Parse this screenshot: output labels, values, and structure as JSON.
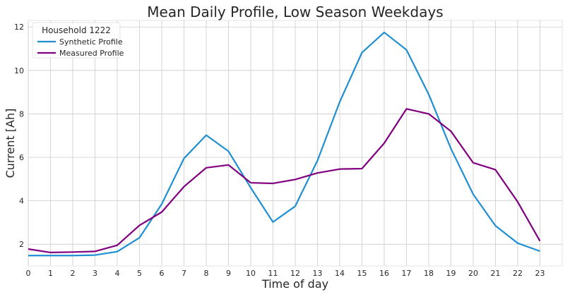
{
  "chart_data": {
    "type": "line",
    "title": "Mean Daily Profile, Low Season Weekdays",
    "xlabel": "Time of day",
    "ylabel": "Current [Ah]",
    "x": [
      0,
      1,
      2,
      3,
      4,
      5,
      6,
      7,
      8,
      9,
      10,
      11,
      12,
      13,
      14,
      15,
      16,
      17,
      18,
      19,
      20,
      21,
      22,
      23
    ],
    "xlim": [
      0,
      24
    ],
    "ylim": [
      1.0,
      12.3
    ],
    "yticks": [
      2,
      4,
      6,
      8,
      10,
      12
    ],
    "grid": true,
    "legend": {
      "title": "Household 1222",
      "placement": "top-left"
    },
    "series": [
      {
        "name": "Synthetic Profile",
        "color": "#1f8fd1",
        "values": [
          1.48,
          1.48,
          1.48,
          1.5,
          1.66,
          2.3,
          3.85,
          5.95,
          7.02,
          6.28,
          4.6,
          3.02,
          3.75,
          5.85,
          8.55,
          10.82,
          11.75,
          10.95,
          8.9,
          6.4,
          4.3,
          2.85,
          2.05,
          1.68
        ]
      },
      {
        "name": "Measured Profile",
        "color": "#800080",
        "values": [
          1.78,
          1.62,
          1.64,
          1.67,
          1.95,
          2.87,
          3.48,
          4.65,
          5.52,
          5.65,
          4.83,
          4.8,
          4.98,
          5.28,
          5.46,
          5.48,
          6.65,
          8.23,
          8.0,
          7.2,
          5.75,
          5.43,
          3.95,
          2.15
        ]
      }
    ]
  }
}
